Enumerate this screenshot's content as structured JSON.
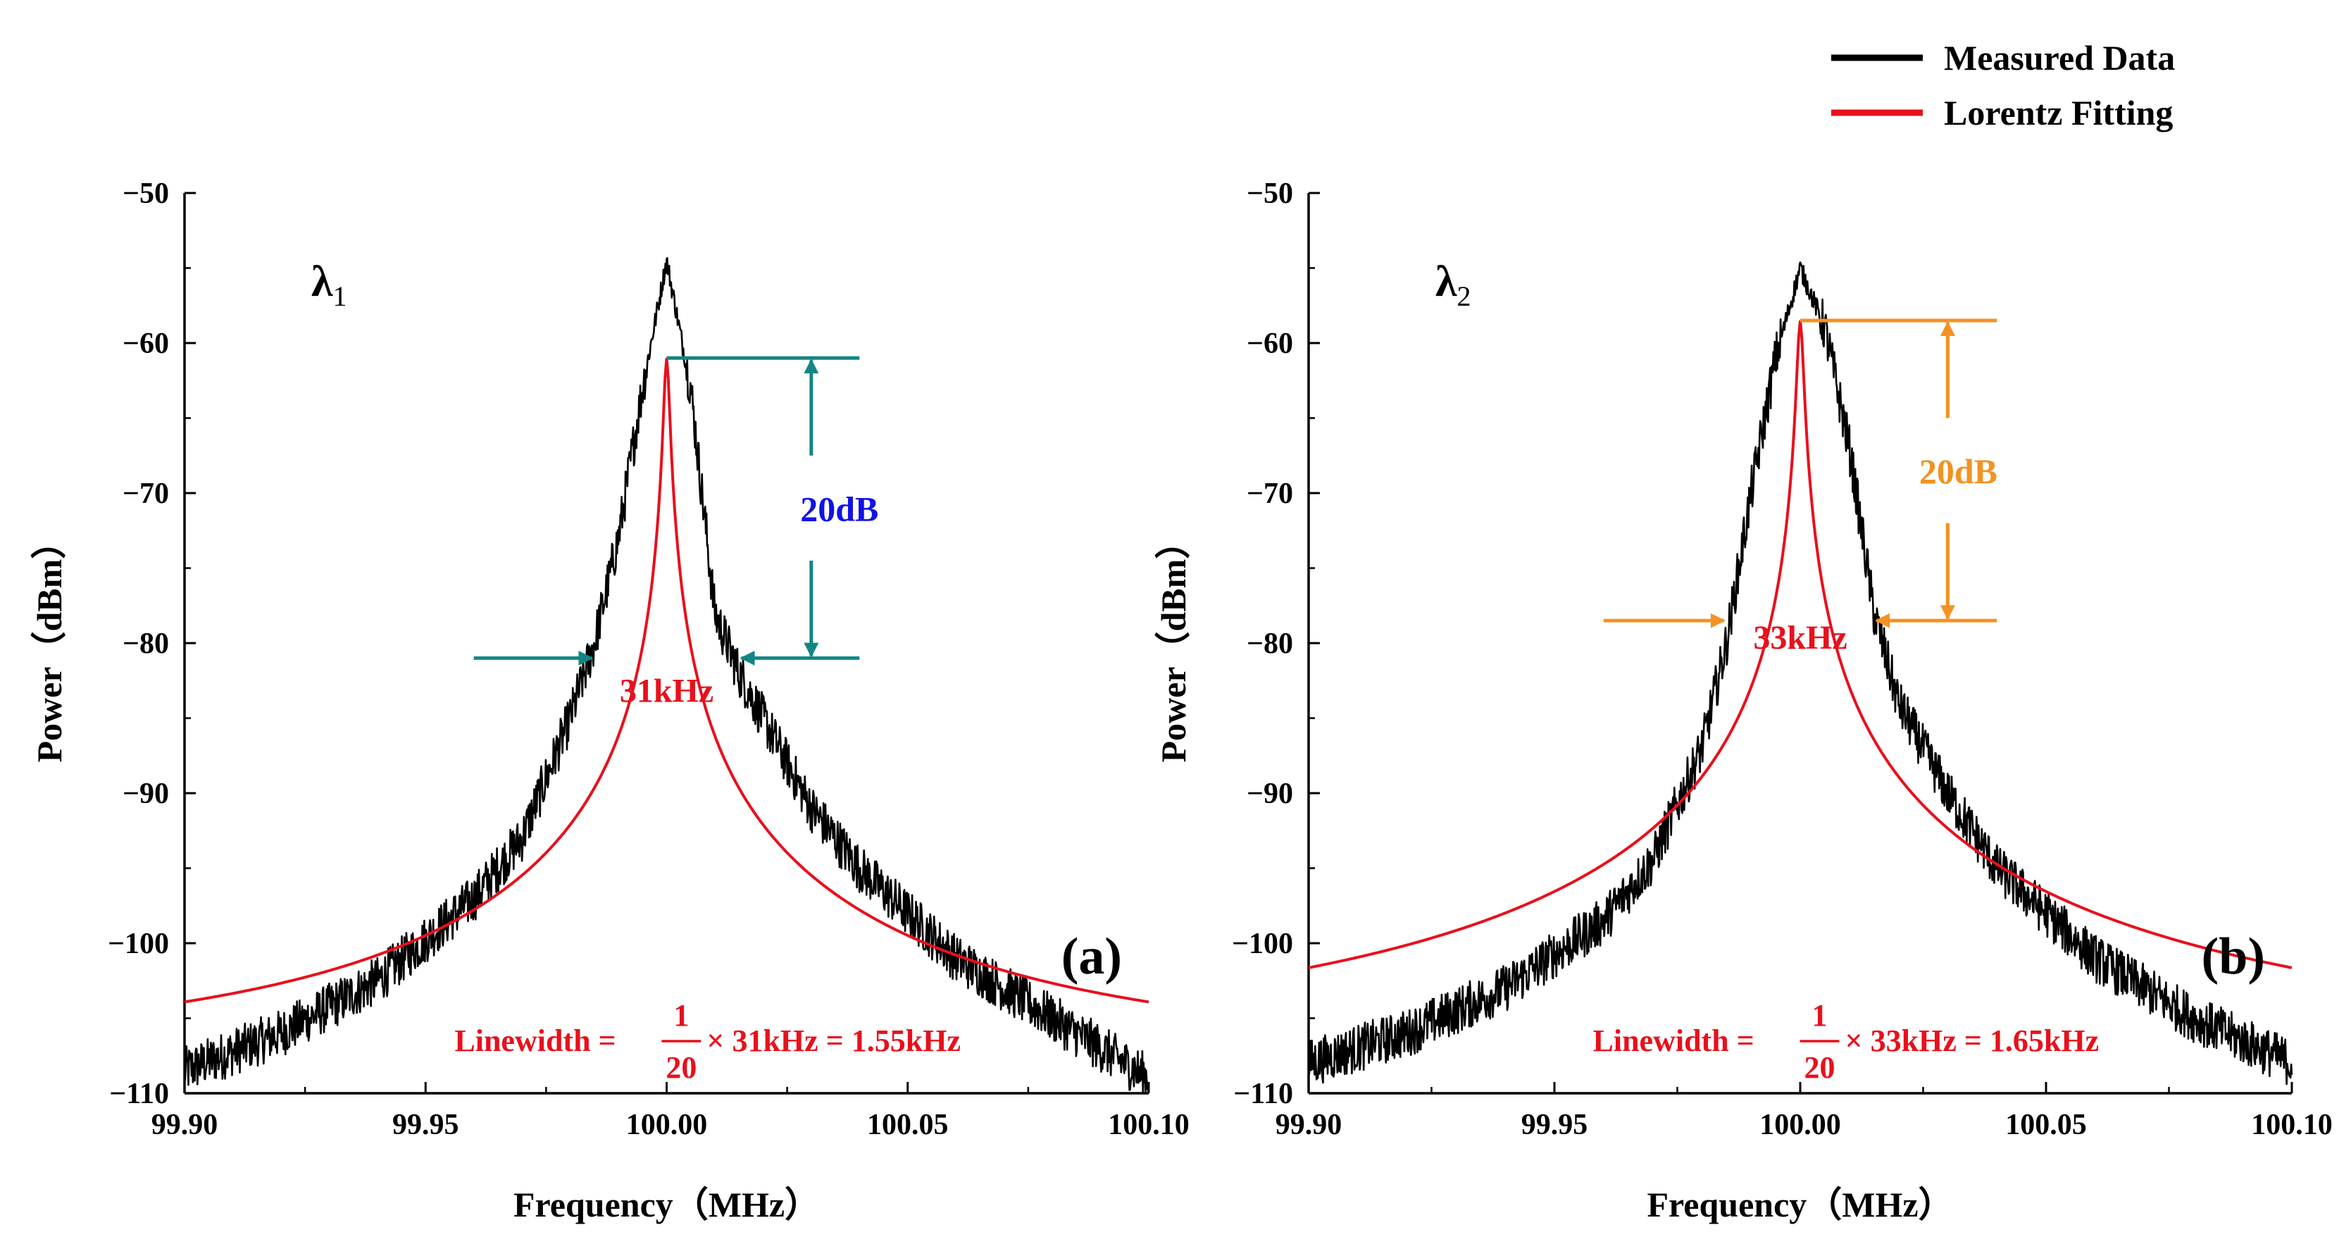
{
  "colors": {
    "measured": "#000000",
    "fit": "#e8101c",
    "annotation_a": "#138585",
    "db_label_a": "#1212e6",
    "annotation_b": "#f39222",
    "db_label_b": "#f39222"
  },
  "legend": {
    "items": [
      {
        "label": "Measured Data",
        "color": "#000000"
      },
      {
        "label": "Lorentz Fitting",
        "color": "#e8101c"
      }
    ]
  },
  "chart_data": [
    {
      "type": "line",
      "panel_label": "(a)",
      "wavelength_symbol": "λ",
      "wavelength_subscript": "1",
      "xlabel": "Frequency（MHz）",
      "ylabel": "Power（dBm）",
      "xlim": [
        99.9,
        100.1
      ],
      "ylim": [
        -110,
        -50
      ],
      "x_ticks": [
        "99.90",
        "99.95",
        "100.00",
        "100.05",
        "100.10"
      ],
      "y_ticks": [
        "−50",
        "−60",
        "−70",
        "−80",
        "−90",
        "−100",
        "−110"
      ],
      "series": [
        {
          "name": "Measured Data",
          "x": [
            99.9,
            99.92,
            99.94,
            99.96,
            99.97,
            99.98,
            99.985,
            99.99,
            99.995,
            100.0,
            100.005,
            100.01,
            100.015,
            100.02,
            100.03,
            100.04,
            100.06,
            100.08,
            100.1
          ],
          "y": [
            -108.5,
            -106,
            -102.5,
            -97,
            -93,
            -85,
            -80,
            -73,
            -63,
            -54.5,
            -63,
            -78,
            -82,
            -85,
            -91,
            -95,
            -101,
            -105,
            -109
          ]
        },
        {
          "name": "Lorentz Fitting",
          "center": 100.0,
          "peak": -61,
          "fwhm": 0.0011,
          "offset": -107.8
        }
      ],
      "annotations": {
        "top_level": -61,
        "bottom_level": -81,
        "db_text": "20dB",
        "width_text": "31kHz",
        "formula_prefix": "Linewidth =",
        "formula_numerator": "1",
        "formula_denominator": "20",
        "formula_suffix": "× 31kHz = 1.55kHz"
      }
    },
    {
      "type": "line",
      "panel_label": "(b)",
      "wavelength_symbol": "λ",
      "wavelength_subscript": "2",
      "xlabel": "Frequency（MHz）",
      "ylabel": "Power（dBm）",
      "xlim": [
        99.9,
        100.1
      ],
      "ylim": [
        -110,
        -50
      ],
      "x_ticks": [
        "99.90",
        "99.95",
        "100.00",
        "100.05",
        "100.10"
      ],
      "y_ticks": [
        "−50",
        "−60",
        "−70",
        "−80",
        "−90",
        "−100",
        "−110"
      ],
      "series": [
        {
          "name": "Measured Data",
          "x": [
            99.9,
            99.92,
            99.94,
            99.96,
            99.97,
            99.98,
            99.985,
            99.99,
            99.995,
            100.0,
            100.005,
            100.01,
            100.015,
            100.02,
            100.03,
            100.04,
            100.06,
            100.08,
            100.1
          ],
          "y": [
            -108,
            -106,
            -103,
            -98.5,
            -94.5,
            -87,
            -80,
            -70,
            -61,
            -55,
            -59,
            -67,
            -78,
            -84,
            -90,
            -95,
            -101,
            -105,
            -108
          ]
        },
        {
          "name": "Lorentz Fitting",
          "center": 100.0,
          "peak": -58.5,
          "fwhm": 0.0012,
          "offset": -107.5
        }
      ],
      "annotations": {
        "top_level": -58.5,
        "bottom_level": -78.5,
        "db_text": "20dB",
        "width_text": "33kHz",
        "formula_prefix": "Linewidth =",
        "formula_numerator": "1",
        "formula_denominator": "20",
        "formula_suffix": "× 33kHz = 1.65kHz"
      }
    }
  ]
}
